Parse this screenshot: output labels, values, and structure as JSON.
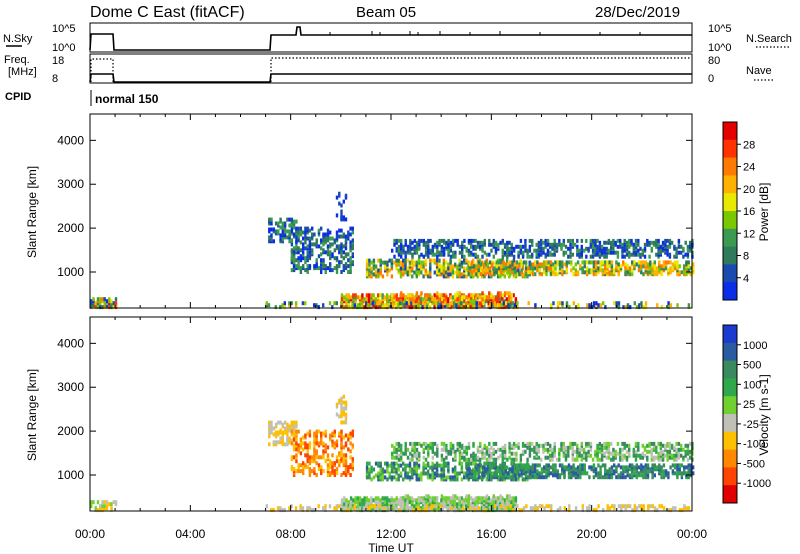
{
  "header": {
    "title": "Dome C East (fitACF)",
    "beam": "Beam 05",
    "date": "28/Dec/2019"
  },
  "status_panel": {
    "nsky_label": "N.Sky",
    "nsky_tick_high": "10^5",
    "nsky_tick_low": "10^0",
    "nsearch_label": "N.Search",
    "nsearch_tick_high": "10^5",
    "nsearch_tick_low": "10^0",
    "freq_label": "Freq.",
    "freq_unit": "[MHz]",
    "freq_tick_high": "18",
    "freq_tick_low": "8",
    "nave_label": "Nave",
    "nave_tick_high": "80",
    "nave_tick_low": "0",
    "cpid_label": "CPID",
    "cpid_value": "normal 150"
  },
  "chart_data": [
    {
      "type": "heatmap",
      "name": "power",
      "ylabel": "Slant Range [km]",
      "ylim": [
        180,
        4600
      ],
      "yticks": [
        1000,
        2000,
        3000,
        4000
      ],
      "xlim": [
        0,
        24
      ],
      "colorbar": {
        "label": "Power [dB]",
        "ticks": [
          "28",
          "24",
          "20",
          "16",
          "12",
          "8",
          "4"
        ],
        "colors": [
          "#e50000",
          "#ff3300",
          "#ff7a00",
          "#ffb000",
          "#e8e800",
          "#7ac800",
          "#3a9a50",
          "#2f7a5a",
          "#1a4ab0",
          "#0a2ee8"
        ]
      },
      "grid": false
    },
    {
      "type": "heatmap",
      "name": "velocity",
      "ylabel": "Slant Range [km]",
      "ylim": [
        180,
        4600
      ],
      "yticks": [
        1000,
        2000,
        3000,
        4000
      ],
      "xlim": [
        0,
        24
      ],
      "colorbar": {
        "label": "Velocity [m s-1]",
        "ticks": [
          "1000",
          "500",
          "100",
          "25",
          "-25",
          "-100",
          "-500",
          "-1000"
        ],
        "colors": [
          "#1a3ad0",
          "#2a5aa0",
          "#3a8a60",
          "#2ea84a",
          "#70d030",
          "#c0c0b8",
          "#ffc000",
          "#ff8800",
          "#ff4400",
          "#e00000"
        ]
      },
      "grid": false
    }
  ],
  "xaxis": {
    "ticks": [
      "00:00",
      "04:00",
      "08:00",
      "12:00",
      "16:00",
      "20:00",
      "00:00"
    ],
    "label": "Time UT"
  }
}
